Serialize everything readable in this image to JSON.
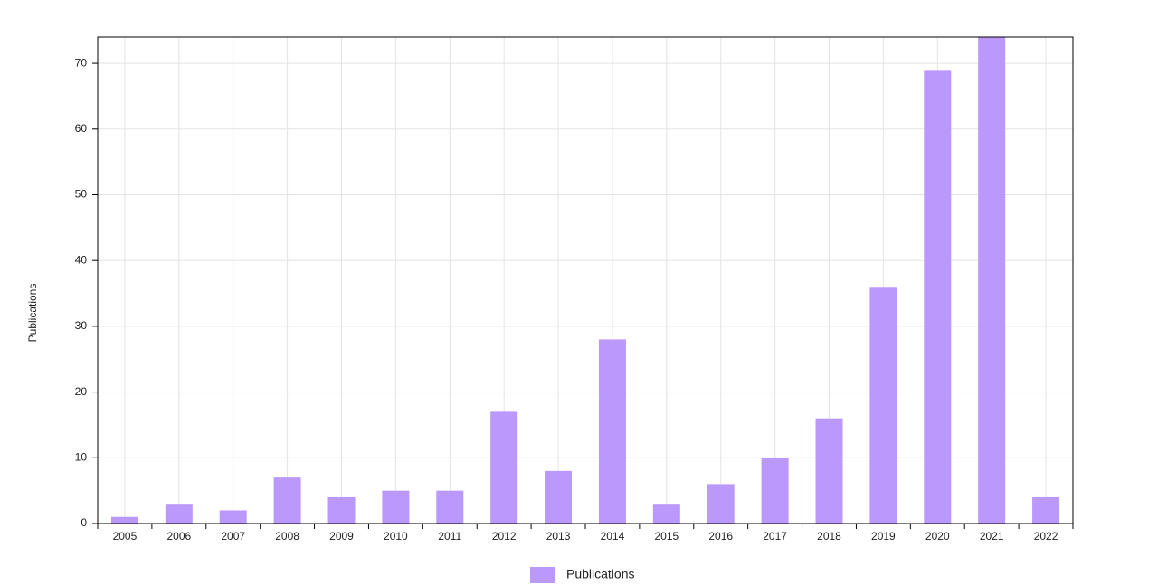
{
  "chart_data": {
    "type": "bar",
    "y_label": "Publications",
    "categories": [
      "2005",
      "2006",
      "2007",
      "2008",
      "2009",
      "2010",
      "2011",
      "2012",
      "2013",
      "2014",
      "2015",
      "2016",
      "2017",
      "2018",
      "2019",
      "2020",
      "2021",
      "2022"
    ],
    "series": [
      {
        "name": "Publications",
        "color": "#bb99fc",
        "values": [
          1,
          3,
          2,
          7,
          4,
          5,
          5,
          17,
          8,
          28,
          3,
          6,
          10,
          16,
          36,
          69,
          74,
          4
        ]
      }
    ],
    "ylim": [
      0,
      74
    ],
    "yticks": [
      0,
      10,
      20,
      30,
      40,
      50,
      60,
      70
    ],
    "grid": true,
    "legend": "bottom"
  }
}
